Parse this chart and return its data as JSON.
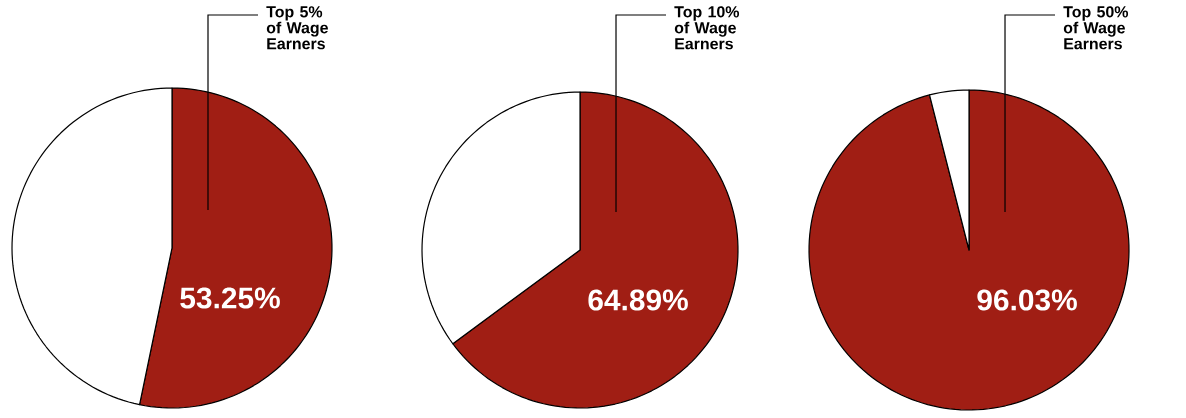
{
  "chart_data": [
    {
      "type": "pie",
      "categories": [
        "Top 5% of Wage Earners",
        null
      ],
      "values": [
        53.25,
        46.75
      ],
      "colors": [
        "#a01e14",
        "#ffffff"
      ],
      "value_labels": [
        "53.25%",
        null
      ]
    },
    {
      "type": "pie",
      "categories": [
        "Top 10% of Wage Earners",
        null
      ],
      "values": [
        64.89,
        35.11
      ],
      "colors": [
        "#a01e14",
        "#ffffff"
      ],
      "value_labels": [
        "64.89%",
        null
      ]
    },
    {
      "type": "pie",
      "categories": [
        "Top 50% of Wage Earners",
        null
      ],
      "values": [
        96.03,
        3.97
      ],
      "colors": [
        "#a01e14",
        "#ffffff"
      ],
      "value_labels": [
        "96.03%",
        null
      ]
    }
  ]
}
